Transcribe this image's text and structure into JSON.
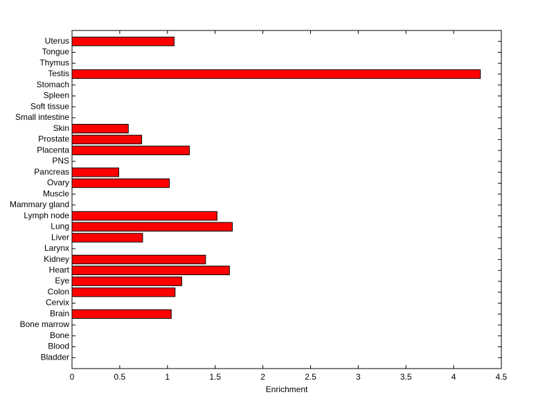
{
  "chart_data": {
    "type": "barh",
    "categories": [
      "Bladder",
      "Blood",
      "Bone",
      "Bone marrow",
      "Brain",
      "Cervix",
      "Colon",
      "Eye",
      "Heart",
      "Kidney",
      "Larynx",
      "Liver",
      "Lung",
      "Lymph node",
      "Mammary gland",
      "Muscle",
      "Ovary",
      "Pancreas",
      "PNS",
      "Placenta",
      "Prostate",
      "Skin",
      "Small intestine",
      "Soft tissue",
      "Spleen",
      "Stomach",
      "Testis",
      "Thymus",
      "Tongue",
      "Uterus"
    ],
    "values": [
      0,
      0,
      0,
      0,
      1.04,
      0,
      1.08,
      1.15,
      1.65,
      1.4,
      0,
      0.74,
      1.68,
      1.52,
      0,
      0,
      1.02,
      0.49,
      0,
      1.23,
      0.73,
      0.59,
      0,
      0,
      0,
      0,
      4.28,
      0,
      0,
      1.07
    ],
    "color": "#ff0000",
    "xlabel": "Enrichment",
    "xlim": [
      0,
      4.5
    ],
    "xticks": [
      0,
      0.5,
      1,
      1.5,
      2,
      2.5,
      3,
      3.5,
      4,
      4.5
    ]
  }
}
